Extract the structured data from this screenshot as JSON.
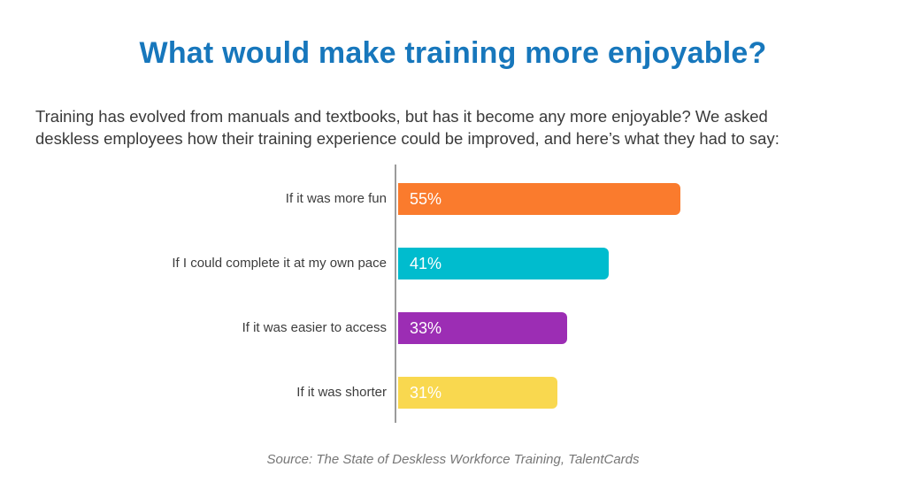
{
  "title": "What would make training more enjoyable?",
  "subtitle_lines": [
    "Training has evolved from manuals and textbooks, but has it become any more enjoyable? We asked",
    "deskless employees how their training experience could be improved, and here’s what they had to say:"
  ],
  "source": "Source: The State of Deskless Workforce Training, TalentCards",
  "colors": {
    "title": "#1777BC",
    "subtitle_text": "#3A3A3A",
    "category_text": "#3D3D3D",
    "axis": "#9B9B9B",
    "source_text": "#767676"
  },
  "chart_data": {
    "type": "bar",
    "orientation": "horizontal",
    "title": "What would make training more enjoyable?",
    "categories": [
      "If it was more fun",
      "If I could complete it at my own pace",
      "If it was easier to access",
      "If it was shorter"
    ],
    "values": [
      55,
      41,
      33,
      31
    ],
    "value_labels": [
      "55%",
      "41%",
      "33%",
      "31%"
    ],
    "bar_colors": [
      "#FA7B2D",
      "#00BCCE",
      "#9C2DB4",
      "#F9D84F"
    ],
    "value_label_color": "#FFFFFF",
    "xlim": [
      0,
      100
    ],
    "grid": false,
    "legend": "none",
    "value_label_position": "inside-left"
  }
}
